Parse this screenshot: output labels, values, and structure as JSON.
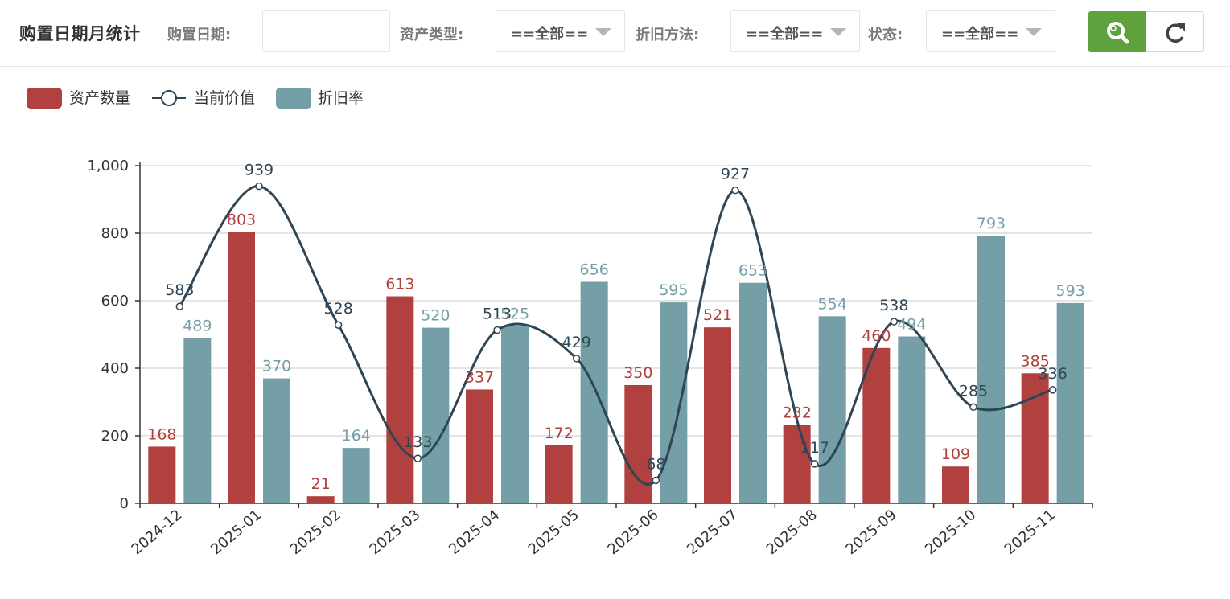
{
  "header": {
    "title": "购置日期月统计",
    "filters": {
      "purchase_date_label": "购置日期:",
      "purchase_date_value": "",
      "asset_type_label": "资产类型:",
      "asset_type_value": "==全部==",
      "depreciation_method_label": "折旧方法:",
      "depreciation_method_value": "==全部==",
      "status_label": "状态:",
      "status_value": "==全部=="
    },
    "buttons": {
      "search_icon": "search-icon",
      "refresh_icon": "refresh-icon"
    }
  },
  "colors": {
    "asset_count": "#b0413e",
    "current_value": "#2f4554",
    "depreciation_rate": "#749fa7",
    "search_button": "#5fa13c"
  },
  "chart_data": {
    "type": "bar",
    "categories": [
      "2024-12",
      "2025-01",
      "2025-02",
      "2025-03",
      "2025-04",
      "2025-05",
      "2025-06",
      "2025-07",
      "2025-08",
      "2025-09",
      "2025-10",
      "2025-11"
    ],
    "series": [
      {
        "name": "资产数量",
        "type": "bar",
        "values": [
          168,
          803,
          21,
          613,
          337,
          172,
          350,
          521,
          232,
          460,
          109,
          385
        ]
      },
      {
        "name": "当前价值",
        "type": "line",
        "smooth": true,
        "values": [
          583,
          939,
          528,
          133,
          513,
          429,
          68,
          927,
          117,
          538,
          285,
          336
        ]
      },
      {
        "name": "折旧率",
        "type": "bar",
        "values": [
          489,
          370,
          164,
          520,
          525,
          656,
          595,
          653,
          554,
          494,
          793,
          593
        ]
      }
    ],
    "yticks": [
      "0",
      "200",
      "400",
      "600",
      "800",
      "1,000"
    ],
    "ylim": [
      0,
      1000
    ],
    "grid": true,
    "legend_position": "top-left",
    "xlabel": "",
    "ylabel": ""
  }
}
